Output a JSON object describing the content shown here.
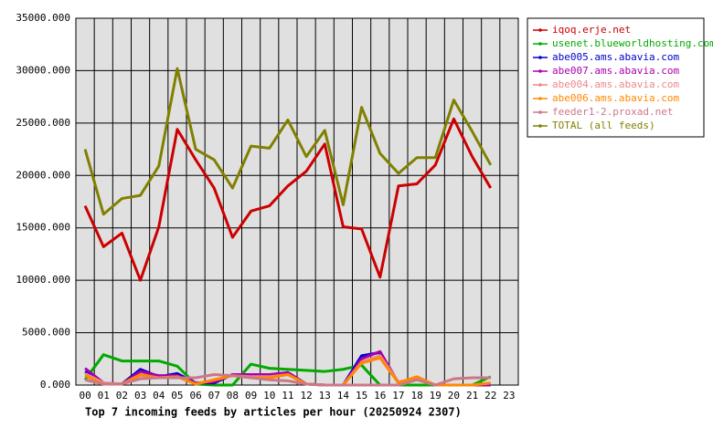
{
  "chart_data": {
    "type": "line",
    "title": "Top 7 incoming feeds by articles per hour (20250924 2307)",
    "categories": [
      "00",
      "01",
      "02",
      "03",
      "04",
      "05",
      "06",
      "07",
      "08",
      "09",
      "10",
      "11",
      "12",
      "13",
      "14",
      "15",
      "16",
      "17",
      "18",
      "19",
      "20",
      "21",
      "22",
      "23"
    ],
    "ylim": [
      0,
      35000
    ],
    "yticks": [
      {
        "value": 0,
        "label": "0.000"
      },
      {
        "value": 5000,
        "label": "5000.000"
      },
      {
        "value": 10000,
        "label": "10000.000"
      },
      {
        "value": 15000,
        "label": "15000.000"
      },
      {
        "value": 20000,
        "label": "20000.000"
      },
      {
        "value": 25000,
        "label": "25000.000"
      },
      {
        "value": 30000,
        "label": "30000.000"
      },
      {
        "value": 35000,
        "label": "35000.000"
      }
    ],
    "grid": true,
    "legend": "right",
    "series": [
      {
        "name": "iqoq.erje.net",
        "color": "#cc0000",
        "values": [
          17100,
          13200,
          14500,
          10000,
          15100,
          24400,
          21500,
          18800,
          14100,
          16600,
          17100,
          19000,
          20400,
          23000,
          15100,
          14900,
          10300,
          19000,
          19200,
          21000,
          25400,
          21800,
          18800,
          null
        ]
      },
      {
        "name": "usenet.blueworldhosting.com",
        "color": "#00aa00",
        "values": [
          500,
          2900,
          2300,
          2300,
          2300,
          1800,
          100,
          0,
          0,
          2000,
          1600,
          1500,
          1400,
          1300,
          1500,
          1900,
          0,
          0,
          0,
          0,
          0,
          0,
          800,
          null
        ]
      },
      {
        "name": "abe005.ams.abavia.com",
        "color": "#0000cc",
        "values": [
          1300,
          100,
          100,
          1500,
          800,
          1100,
          200,
          200,
          1000,
          900,
          900,
          1200,
          100,
          0,
          0,
          2800,
          3100,
          200,
          700,
          0,
          0,
          0,
          0,
          null
        ]
      },
      {
        "name": "abe007.ams.abavia.com",
        "color": "#aa00aa",
        "values": [
          1600,
          200,
          100,
          1300,
          900,
          900,
          200,
          300,
          1000,
          1000,
          1000,
          1200,
          100,
          0,
          0,
          2500,
          3200,
          200,
          600,
          0,
          0,
          0,
          0,
          null
        ]
      },
      {
        "name": "abe004.ams.abavia.com",
        "color": "#ee8888",
        "values": [
          1100,
          200,
          100,
          900,
          700,
          800,
          100,
          500,
          900,
          800,
          800,
          1000,
          100,
          0,
          0,
          2200,
          2800,
          300,
          700,
          0,
          0,
          0,
          200,
          null
        ]
      },
      {
        "name": "abe006.ams.abavia.com",
        "color": "#ff8800",
        "values": [
          900,
          100,
          100,
          1000,
          700,
          800,
          100,
          500,
          900,
          700,
          700,
          1000,
          100,
          0,
          0,
          2100,
          2600,
          200,
          800,
          0,
          0,
          0,
          200,
          null
        ]
      },
      {
        "name": "feeder1-2.proxad.net",
        "color": "#cc7788",
        "values": [
          500,
          100,
          100,
          600,
          700,
          700,
          700,
          1000,
          900,
          700,
          500,
          400,
          100,
          0,
          0,
          0,
          0,
          0,
          500,
          0,
          600,
          700,
          700,
          null
        ]
      },
      {
        "name": "TOTAL (all feeds)",
        "color": "#808000",
        "values": [
          22500,
          16300,
          17800,
          18100,
          20900,
          30200,
          22500,
          21500,
          18800,
          22800,
          22600,
          25300,
          21800,
          24300,
          17200,
          26500,
          22100,
          20200,
          21700,
          21700,
          27200,
          24200,
          21000,
          null
        ]
      }
    ]
  }
}
